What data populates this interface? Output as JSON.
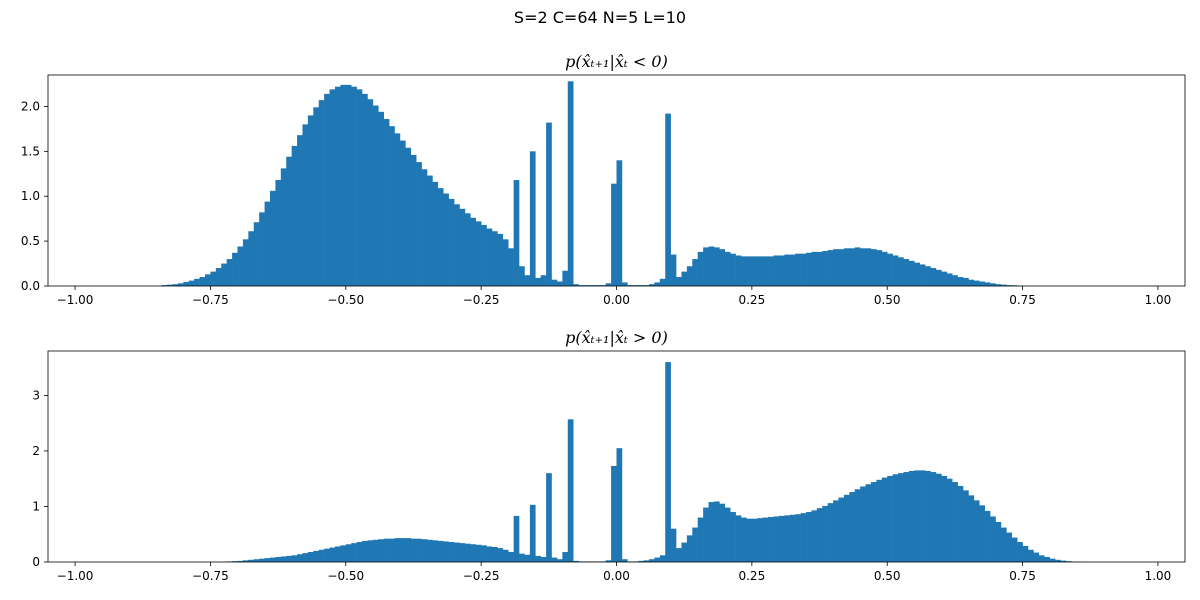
{
  "figure": {
    "suptitle": "S=2 C=64 N=5 L=10"
  },
  "chart_data": [
    {
      "type": "bar",
      "title": "p(x̂ₜ₊₁|x̂ₜ < 0)",
      "xlim": [
        -1.05,
        1.05
      ],
      "ylim": [
        0,
        2.35
      ],
      "xticks": [
        -1.0,
        -0.75,
        -0.5,
        -0.25,
        0.0,
        0.25,
        0.5,
        0.75,
        1.0
      ],
      "xtick_labels": [
        "−1.00",
        "−0.75",
        "−0.50",
        "−0.25",
        "0.00",
        "0.25",
        "0.50",
        "0.75",
        "1.00"
      ],
      "yticks": [
        0,
        0.5,
        1.0,
        1.5,
        2.0
      ],
      "ytick_labels": [
        "0.0",
        "0.5",
        "1.0",
        "1.5",
        "2.0"
      ],
      "bin_width": 0.01,
      "bins": [
        [
          -0.84,
          0.01
        ],
        [
          -0.83,
          0.015
        ],
        [
          -0.82,
          0.02
        ],
        [
          -0.81,
          0.03
        ],
        [
          -0.8,
          0.045
        ],
        [
          -0.79,
          0.06
        ],
        [
          -0.78,
          0.08
        ],
        [
          -0.77,
          0.1
        ],
        [
          -0.76,
          0.13
        ],
        [
          -0.75,
          0.16
        ],
        [
          -0.74,
          0.2
        ],
        [
          -0.73,
          0.25
        ],
        [
          -0.72,
          0.3
        ],
        [
          -0.71,
          0.37
        ],
        [
          -0.7,
          0.44
        ],
        [
          -0.69,
          0.52
        ],
        [
          -0.68,
          0.61
        ],
        [
          -0.67,
          0.71
        ],
        [
          -0.66,
          0.82
        ],
        [
          -0.65,
          0.94
        ],
        [
          -0.64,
          1.06
        ],
        [
          -0.63,
          1.18
        ],
        [
          -0.62,
          1.31
        ],
        [
          -0.61,
          1.44
        ],
        [
          -0.6,
          1.56
        ],
        [
          -0.59,
          1.68
        ],
        [
          -0.58,
          1.8
        ],
        [
          -0.57,
          1.9
        ],
        [
          -0.56,
          1.99
        ],
        [
          -0.55,
          2.07
        ],
        [
          -0.54,
          2.14
        ],
        [
          -0.53,
          2.19
        ],
        [
          -0.52,
          2.22
        ],
        [
          -0.51,
          2.24
        ],
        [
          -0.5,
          2.24
        ],
        [
          -0.49,
          2.22
        ],
        [
          -0.48,
          2.19
        ],
        [
          -0.47,
          2.14
        ],
        [
          -0.46,
          2.08
        ],
        [
          -0.45,
          2.01
        ],
        [
          -0.44,
          1.94
        ],
        [
          -0.43,
          1.86
        ],
        [
          -0.42,
          1.78
        ],
        [
          -0.41,
          1.7
        ],
        [
          -0.4,
          1.62
        ],
        [
          -0.39,
          1.54
        ],
        [
          -0.38,
          1.46
        ],
        [
          -0.37,
          1.38
        ],
        [
          -0.36,
          1.3
        ],
        [
          -0.35,
          1.23
        ],
        [
          -0.34,
          1.16
        ],
        [
          -0.33,
          1.09
        ],
        [
          -0.32,
          1.03
        ],
        [
          -0.31,
          0.97
        ],
        [
          -0.3,
          0.91
        ],
        [
          -0.29,
          0.86
        ],
        [
          -0.28,
          0.81
        ],
        [
          -0.27,
          0.76
        ],
        [
          -0.26,
          0.72
        ],
        [
          -0.25,
          0.68
        ],
        [
          -0.24,
          0.64
        ],
        [
          -0.23,
          0.61
        ],
        [
          -0.22,
          0.58
        ],
        [
          -0.21,
          0.52
        ],
        [
          -0.2,
          0.42
        ],
        [
          -0.19,
          1.18
        ],
        [
          -0.18,
          0.22
        ],
        [
          -0.17,
          0.12
        ],
        [
          -0.16,
          1.5
        ],
        [
          -0.15,
          0.09
        ],
        [
          -0.14,
          0.12
        ],
        [
          -0.13,
          1.82
        ],
        [
          -0.12,
          0.07
        ],
        [
          -0.11,
          0.05
        ],
        [
          -0.1,
          0.17
        ],
        [
          -0.09,
          2.28
        ],
        [
          -0.08,
          0.02
        ],
        [
          -0.07,
          0.01
        ],
        [
          -0.06,
          0.01
        ],
        [
          -0.05,
          0.01
        ],
        [
          -0.04,
          0.01
        ],
        [
          -0.03,
          0.01
        ],
        [
          -0.02,
          0.03
        ],
        [
          -0.01,
          1.14
        ],
        [
          0.0,
          1.4
        ],
        [
          0.01,
          0.04
        ],
        [
          0.02,
          0.01
        ],
        [
          0.03,
          0.01
        ],
        [
          0.04,
          0.01
        ],
        [
          0.05,
          0.01
        ],
        [
          0.06,
          0.02
        ],
        [
          0.07,
          0.04
        ],
        [
          0.08,
          0.08
        ],
        [
          0.09,
          1.92
        ],
        [
          0.1,
          0.35
        ],
        [
          0.11,
          0.1
        ],
        [
          0.12,
          0.16
        ],
        [
          0.13,
          0.22
        ],
        [
          0.14,
          0.3
        ],
        [
          0.15,
          0.38
        ],
        [
          0.16,
          0.43
        ],
        [
          0.17,
          0.44
        ],
        [
          0.18,
          0.43
        ],
        [
          0.19,
          0.41
        ],
        [
          0.2,
          0.38
        ],
        [
          0.21,
          0.36
        ],
        [
          0.22,
          0.34
        ],
        [
          0.23,
          0.33
        ],
        [
          0.24,
          0.33
        ],
        [
          0.25,
          0.33
        ],
        [
          0.26,
          0.33
        ],
        [
          0.27,
          0.33
        ],
        [
          0.28,
          0.33
        ],
        [
          0.29,
          0.34
        ],
        [
          0.3,
          0.34
        ],
        [
          0.31,
          0.35
        ],
        [
          0.32,
          0.35
        ],
        [
          0.33,
          0.36
        ],
        [
          0.34,
          0.36
        ],
        [
          0.35,
          0.37
        ],
        [
          0.36,
          0.38
        ],
        [
          0.37,
          0.38
        ],
        [
          0.38,
          0.39
        ],
        [
          0.39,
          0.4
        ],
        [
          0.4,
          0.41
        ],
        [
          0.41,
          0.41
        ],
        [
          0.42,
          0.42
        ],
        [
          0.43,
          0.42
        ],
        [
          0.44,
          0.43
        ],
        [
          0.45,
          0.42
        ],
        [
          0.46,
          0.42
        ],
        [
          0.47,
          0.41
        ],
        [
          0.48,
          0.4
        ],
        [
          0.49,
          0.38
        ],
        [
          0.5,
          0.36
        ],
        [
          0.51,
          0.34
        ],
        [
          0.52,
          0.32
        ],
        [
          0.53,
          0.3
        ],
        [
          0.54,
          0.28
        ],
        [
          0.55,
          0.26
        ],
        [
          0.56,
          0.24
        ],
        [
          0.57,
          0.22
        ],
        [
          0.58,
          0.2
        ],
        [
          0.59,
          0.18
        ],
        [
          0.6,
          0.16
        ],
        [
          0.61,
          0.14
        ],
        [
          0.62,
          0.12
        ],
        [
          0.63,
          0.1
        ],
        [
          0.64,
          0.09
        ],
        [
          0.65,
          0.07
        ],
        [
          0.66,
          0.06
        ],
        [
          0.67,
          0.05
        ],
        [
          0.68,
          0.04
        ],
        [
          0.69,
          0.03
        ],
        [
          0.7,
          0.02
        ],
        [
          0.71,
          0.015
        ],
        [
          0.72,
          0.01
        ],
        [
          0.73,
          0.008
        ],
        [
          0.74,
          0.005
        ]
      ]
    },
    {
      "type": "bar",
      "title": "p(x̂ₜ₊₁|x̂ₜ > 0)",
      "xlim": [
        -1.05,
        1.05
      ],
      "ylim": [
        0,
        3.8
      ],
      "xticks": [
        -1.0,
        -0.75,
        -0.5,
        -0.25,
        0.0,
        0.25,
        0.5,
        0.75,
        1.0
      ],
      "xtick_labels": [
        "−1.00",
        "−0.75",
        "−0.50",
        "−0.25",
        "0.00",
        "0.25",
        "0.50",
        "0.75",
        "1.00"
      ],
      "yticks": [
        0,
        1,
        2,
        3
      ],
      "ytick_labels": [
        "0",
        "1",
        "2",
        "3"
      ],
      "bin_width": 0.01,
      "bins": [
        [
          -0.72,
          0.01
        ],
        [
          -0.71,
          0.015
        ],
        [
          -0.7,
          0.02
        ],
        [
          -0.69,
          0.03
        ],
        [
          -0.68,
          0.04
        ],
        [
          -0.67,
          0.05
        ],
        [
          -0.66,
          0.06
        ],
        [
          -0.65,
          0.07
        ],
        [
          -0.64,
          0.08
        ],
        [
          -0.63,
          0.09
        ],
        [
          -0.62,
          0.1
        ],
        [
          -0.61,
          0.11
        ],
        [
          -0.6,
          0.12
        ],
        [
          -0.59,
          0.14
        ],
        [
          -0.58,
          0.16
        ],
        [
          -0.57,
          0.18
        ],
        [
          -0.56,
          0.2
        ],
        [
          -0.55,
          0.22
        ],
        [
          -0.54,
          0.24
        ],
        [
          -0.53,
          0.26
        ],
        [
          -0.52,
          0.28
        ],
        [
          -0.51,
          0.3
        ],
        [
          -0.5,
          0.32
        ],
        [
          -0.49,
          0.34
        ],
        [
          -0.48,
          0.36
        ],
        [
          -0.47,
          0.38
        ],
        [
          -0.46,
          0.39
        ],
        [
          -0.45,
          0.4
        ],
        [
          -0.44,
          0.41
        ],
        [
          -0.43,
          0.42
        ],
        [
          -0.42,
          0.42
        ],
        [
          -0.41,
          0.43
        ],
        [
          -0.4,
          0.43
        ],
        [
          -0.39,
          0.43
        ],
        [
          -0.38,
          0.42
        ],
        [
          -0.37,
          0.42
        ],
        [
          -0.36,
          0.41
        ],
        [
          -0.35,
          0.4
        ],
        [
          -0.34,
          0.39
        ],
        [
          -0.33,
          0.38
        ],
        [
          -0.32,
          0.37
        ],
        [
          -0.31,
          0.36
        ],
        [
          -0.3,
          0.35
        ],
        [
          -0.29,
          0.34
        ],
        [
          -0.28,
          0.33
        ],
        [
          -0.27,
          0.32
        ],
        [
          -0.26,
          0.31
        ],
        [
          -0.25,
          0.3
        ],
        [
          -0.24,
          0.28
        ],
        [
          -0.23,
          0.27
        ],
        [
          -0.22,
          0.25
        ],
        [
          -0.21,
          0.22
        ],
        [
          -0.2,
          0.18
        ],
        [
          -0.19,
          0.83
        ],
        [
          -0.18,
          0.15
        ],
        [
          -0.17,
          0.13
        ],
        [
          -0.16,
          1.03
        ],
        [
          -0.15,
          0.11
        ],
        [
          -0.14,
          0.09
        ],
        [
          -0.13,
          1.6
        ],
        [
          -0.12,
          0.08
        ],
        [
          -0.11,
          0.05
        ],
        [
          -0.1,
          0.18
        ],
        [
          -0.09,
          2.57
        ],
        [
          -0.08,
          0.02
        ],
        [
          -0.07,
          0.01
        ],
        [
          -0.06,
          0.01
        ],
        [
          -0.05,
          0.01
        ],
        [
          -0.04,
          0.01
        ],
        [
          -0.03,
          0.01
        ],
        [
          -0.02,
          0.03
        ],
        [
          -0.01,
          1.73
        ],
        [
          0.0,
          2.05
        ],
        [
          0.01,
          0.05
        ],
        [
          0.02,
          0.01
        ],
        [
          0.03,
          0.01
        ],
        [
          0.04,
          0.02
        ],
        [
          0.05,
          0.03
        ],
        [
          0.06,
          0.05
        ],
        [
          0.07,
          0.08
        ],
        [
          0.08,
          0.12
        ],
        [
          0.09,
          3.6
        ],
        [
          0.1,
          0.6
        ],
        [
          0.11,
          0.25
        ],
        [
          0.12,
          0.35
        ],
        [
          0.13,
          0.48
        ],
        [
          0.14,
          0.62
        ],
        [
          0.15,
          0.8
        ],
        [
          0.16,
          0.98
        ],
        [
          0.17,
          1.08
        ],
        [
          0.18,
          1.09
        ],
        [
          0.19,
          1.05
        ],
        [
          0.2,
          0.98
        ],
        [
          0.21,
          0.9
        ],
        [
          0.22,
          0.84
        ],
        [
          0.23,
          0.8
        ],
        [
          0.24,
          0.78
        ],
        [
          0.25,
          0.78
        ],
        [
          0.26,
          0.79
        ],
        [
          0.27,
          0.8
        ],
        [
          0.28,
          0.81
        ],
        [
          0.29,
          0.82
        ],
        [
          0.3,
          0.83
        ],
        [
          0.31,
          0.84
        ],
        [
          0.32,
          0.85
        ],
        [
          0.33,
          0.86
        ],
        [
          0.34,
          0.88
        ],
        [
          0.35,
          0.9
        ],
        [
          0.36,
          0.93
        ],
        [
          0.37,
          0.97
        ],
        [
          0.38,
          1.01
        ],
        [
          0.39,
          1.06
        ],
        [
          0.4,
          1.11
        ],
        [
          0.41,
          1.16
        ],
        [
          0.42,
          1.21
        ],
        [
          0.43,
          1.26
        ],
        [
          0.44,
          1.31
        ],
        [
          0.45,
          1.36
        ],
        [
          0.46,
          1.4
        ],
        [
          0.47,
          1.44
        ],
        [
          0.48,
          1.48
        ],
        [
          0.49,
          1.52
        ],
        [
          0.5,
          1.55
        ],
        [
          0.51,
          1.58
        ],
        [
          0.52,
          1.6
        ],
        [
          0.53,
          1.62
        ],
        [
          0.54,
          1.64
        ],
        [
          0.55,
          1.65
        ],
        [
          0.56,
          1.65
        ],
        [
          0.57,
          1.64
        ],
        [
          0.58,
          1.62
        ],
        [
          0.59,
          1.59
        ],
        [
          0.6,
          1.55
        ],
        [
          0.61,
          1.5
        ],
        [
          0.62,
          1.44
        ],
        [
          0.63,
          1.37
        ],
        [
          0.64,
          1.29
        ],
        [
          0.65,
          1.2
        ],
        [
          0.66,
          1.11
        ],
        [
          0.67,
          1.02
        ],
        [
          0.68,
          0.92
        ],
        [
          0.69,
          0.82
        ],
        [
          0.7,
          0.72
        ],
        [
          0.71,
          0.62
        ],
        [
          0.72,
          0.53
        ],
        [
          0.73,
          0.44
        ],
        [
          0.74,
          0.36
        ],
        [
          0.75,
          0.29
        ],
        [
          0.76,
          0.22
        ],
        [
          0.77,
          0.17
        ],
        [
          0.78,
          0.12
        ],
        [
          0.79,
          0.09
        ],
        [
          0.8,
          0.06
        ],
        [
          0.81,
          0.04
        ],
        [
          0.82,
          0.025
        ],
        [
          0.83,
          0.015
        ],
        [
          0.84,
          0.008
        ],
        [
          0.85,
          0.005
        ]
      ]
    }
  ]
}
